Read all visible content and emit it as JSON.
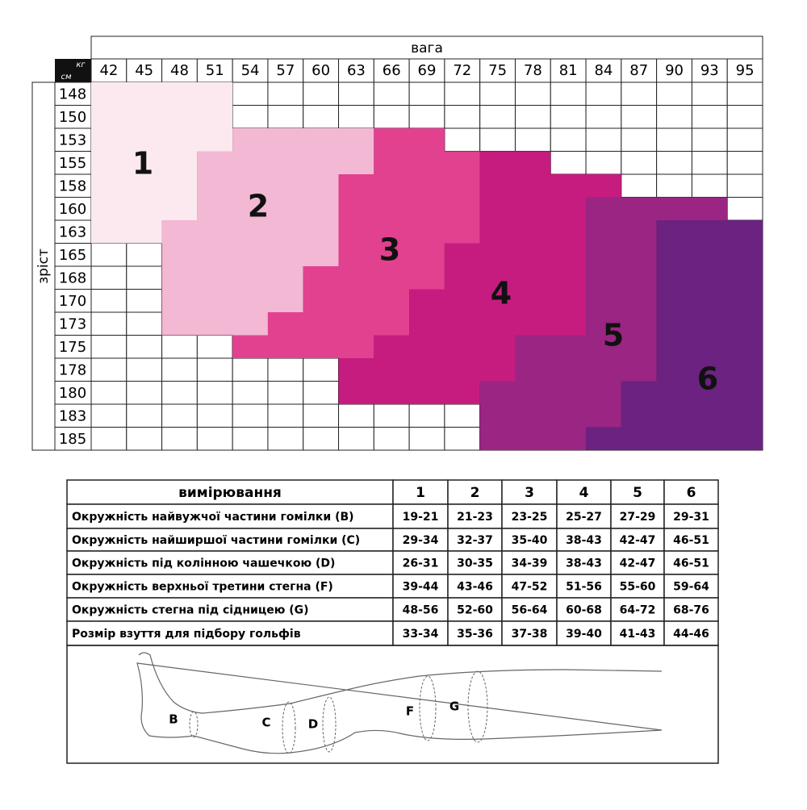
{
  "size_grid": {
    "weight_title": "вага",
    "height_title": "зріст",
    "corner_top": "кг",
    "corner_bottom": "см",
    "weights": [
      42,
      45,
      48,
      51,
      54,
      57,
      60,
      63,
      66,
      69,
      72,
      75,
      78,
      81,
      84,
      87,
      90,
      93,
      95
    ],
    "heights": [
      148,
      150,
      153,
      155,
      158,
      160,
      163,
      165,
      168,
      170,
      173,
      175,
      178,
      180,
      183,
      185
    ],
    "zones": [
      "1",
      "2",
      "3",
      "4",
      "5",
      "6"
    ]
  },
  "table": {
    "header": [
      "вимірювання",
      "1",
      "2",
      "3",
      "4",
      "5",
      "6"
    ],
    "rows": [
      [
        "Окружність найвужчої частини гомілки (B)",
        "19-21",
        "21-23",
        "23-25",
        "25-27",
        "27-29",
        "29-31"
      ],
      [
        "Окружність найширшої частини гомілки (C)",
        "29-34",
        "32-37",
        "35-40",
        "38-43",
        "42-47",
        "46-51"
      ],
      [
        "Окружність під колінною чашечкою (D)",
        "26-31",
        "30-35",
        "34-39",
        "38-43",
        "42-47",
        "46-51"
      ],
      [
        "Окружність верхньої третини стегна (F)",
        "39-44",
        "43-46",
        "47-52",
        "51-56",
        "55-60",
        "59-64"
      ],
      [
        "Окружність стегна під сідницею (G)",
        "48-56",
        "52-60",
        "56-64",
        "60-68",
        "64-72",
        "68-76"
      ],
      [
        "Розмір взуття для підбору гольфів",
        "33-34",
        "35-36",
        "37-38",
        "39-40",
        "41-43",
        "44-46"
      ]
    ]
  },
  "leg_labels": [
    "B",
    "C",
    "D",
    "F",
    "G"
  ]
}
